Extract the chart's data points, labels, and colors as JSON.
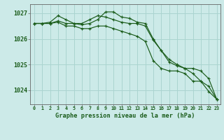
{
  "title": "Graphe pression niveau de la mer (hPa)",
  "background_color": "#cceae8",
  "grid_color": "#aad4d0",
  "line_color": "#1a5c1a",
  "spine_color": "#666666",
  "xlim": [
    -0.5,
    23.5
  ],
  "ylim": [
    1023.45,
    1027.35
  ],
  "yticks": [
    1024,
    1025,
    1026,
    1027
  ],
  "xticks": [
    0,
    1,
    2,
    3,
    4,
    5,
    6,
    7,
    8,
    9,
    10,
    11,
    12,
    13,
    14,
    15,
    16,
    17,
    18,
    19,
    20,
    21,
    22,
    23
  ],
  "series1": [
    1026.6,
    1026.6,
    1026.65,
    1026.9,
    1026.75,
    1026.6,
    1026.6,
    1026.75,
    1026.9,
    1026.85,
    1026.75,
    1026.65,
    1026.6,
    1026.6,
    1026.5,
    1025.95,
    1025.55,
    1025.1,
    1024.95,
    1024.85,
    1024.85,
    1024.75,
    1024.45,
    1023.65
  ],
  "series2": [
    1026.6,
    1026.6,
    1026.6,
    1026.65,
    1026.5,
    1026.5,
    1026.4,
    1026.4,
    1026.5,
    1026.5,
    1026.4,
    1026.3,
    1026.2,
    1026.1,
    1025.9,
    1025.15,
    1024.85,
    1024.75,
    1024.75,
    1024.65,
    1024.35,
    1024.35,
    1024.15,
    1023.65
  ],
  "series3": [
    1026.6,
    1026.6,
    1026.6,
    1026.7,
    1026.6,
    1026.6,
    1026.55,
    1026.6,
    1026.75,
    1027.05,
    1027.05,
    1026.85,
    1026.8,
    1026.65,
    1026.6,
    1026.0,
    1025.55,
    1025.2,
    1025.0,
    1024.85,
    1024.65,
    1024.35,
    1023.95,
    1023.65
  ]
}
